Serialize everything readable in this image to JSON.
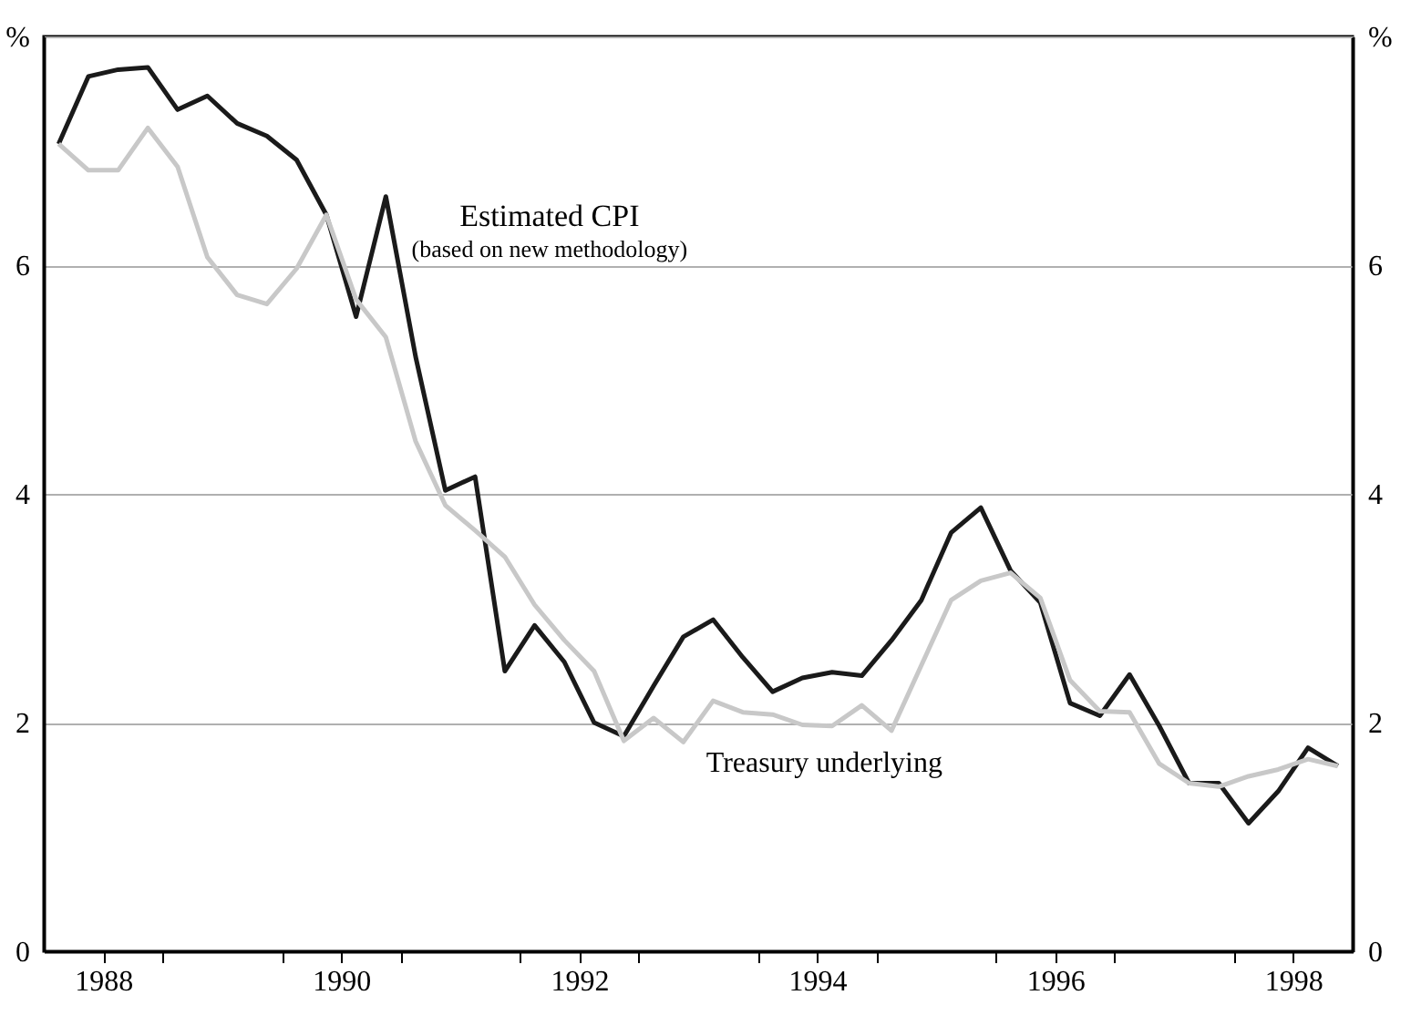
{
  "chart_data": {
    "type": "line",
    "x": [
      1988.125,
      1988.375,
      1988.625,
      1988.875,
      1989.125,
      1989.375,
      1989.625,
      1989.875,
      1990.125,
      1990.375,
      1990.625,
      1990.875,
      1991.125,
      1991.375,
      1991.625,
      1991.875,
      1992.125,
      1992.375,
      1992.625,
      1992.875,
      1993.125,
      1993.375,
      1993.625,
      1993.875,
      1994.125,
      1994.375,
      1994.625,
      1994.875,
      1995.125,
      1995.375,
      1995.625,
      1995.875,
      1996.125,
      1996.375,
      1996.625,
      1996.875,
      1997.125,
      1997.375,
      1997.625,
      1997.875,
      1998.125,
      1998.375,
      1998.625,
      1998.875
    ],
    "series": [
      {
        "name": "Estimated CPI",
        "color": "#1a1a1a",
        "values": [
          7.06,
          7.65,
          7.71,
          7.73,
          7.36,
          7.48,
          7.24,
          7.13,
          6.92,
          6.44,
          5.55,
          6.6,
          5.2,
          4.03,
          4.15,
          2.45,
          2.85,
          2.53,
          2.0,
          1.88,
          2.32,
          2.75,
          2.9,
          2.57,
          2.27,
          2.39,
          2.44,
          2.41,
          2.72,
          3.07,
          3.66,
          3.88,
          3.33,
          3.05,
          2.17,
          2.06,
          2.42,
          1.97,
          1.47,
          1.47,
          1.12,
          1.4,
          1.78,
          1.62
        ]
      },
      {
        "name": "Treasury underlying",
        "color": "#c8c8c8",
        "values": [
          7.06,
          6.83,
          6.83,
          7.2,
          6.86,
          6.07,
          5.74,
          5.66,
          5.97,
          6.44,
          5.7,
          5.37,
          4.46,
          3.9,
          3.68,
          3.45,
          3.03,
          2.72,
          2.45,
          1.84,
          2.04,
          1.83,
          2.19,
          2.09,
          2.07,
          1.98,
          1.97,
          2.15,
          1.93,
          2.5,
          3.07,
          3.24,
          3.31,
          3.09,
          2.37,
          2.1,
          2.09,
          1.64,
          1.47,
          1.44,
          1.53,
          1.59,
          1.68,
          1.62
        ]
      }
    ],
    "annotations": [
      "(based on new methodology)"
    ],
    "xlim": [
      1988,
      1999
    ],
    "xticks": [
      {
        "value": 1988.5,
        "label": "1988"
      },
      {
        "value": 1990.5,
        "label": "1990"
      },
      {
        "value": 1992.5,
        "label": "1992"
      },
      {
        "value": 1994.5,
        "label": "1994"
      },
      {
        "value": 1996.5,
        "label": "1996"
      },
      {
        "value": 1998.5,
        "label": "1998"
      },
      {
        "value": 1989,
        "label": null
      },
      {
        "value": 1990,
        "label": null
      },
      {
        "value": 1991,
        "label": null
      },
      {
        "value": 1992,
        "label": null
      },
      {
        "value": 1993,
        "label": null
      },
      {
        "value": 1994,
        "label": null
      },
      {
        "value": 1995,
        "label": null
      },
      {
        "value": 1996,
        "label": null
      },
      {
        "value": 1997,
        "label": null
      },
      {
        "value": 1998,
        "label": null
      }
    ],
    "ylim": [
      0,
      8
    ],
    "yticks": [
      0,
      2,
      4,
      6,
      {
        "value": 8,
        "label": "%"
      }
    ],
    "y2lim": [
      0,
      8
    ],
    "y2ticks": [
      0,
      2,
      4,
      6,
      {
        "value": 8,
        "label": "%"
      }
    ],
    "grid": "y",
    "legend": false,
    "marker": "none",
    "line_style": "solid"
  }
}
